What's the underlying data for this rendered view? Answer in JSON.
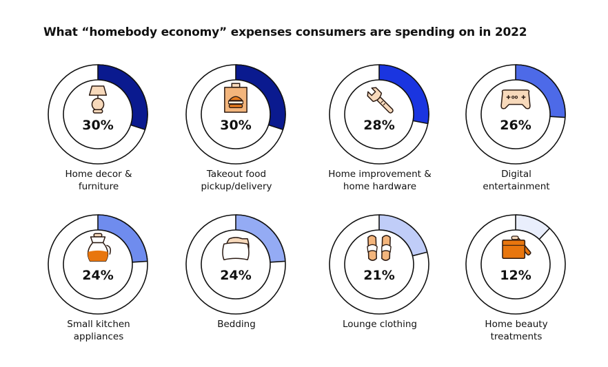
{
  "chart_data": {
    "type": "donut",
    "title": "What “homebody economy” expenses consumers are spending on in 2022",
    "items": [
      {
        "label_lines": [
          "Home decor &",
          "furniture"
        ],
        "value": 30,
        "value_label": "30%",
        "color": "#0a1a8f",
        "icon": "lamp-icon"
      },
      {
        "label_lines": [
          "Takeout food",
          "pickup/delivery"
        ],
        "value": 30,
        "value_label": "30%",
        "color": "#0a1a8f",
        "icon": "takeout-bag-icon"
      },
      {
        "label_lines": [
          "Home improvement &",
          "home hardware"
        ],
        "value": 28,
        "value_label": "28%",
        "color": "#1a35e0",
        "icon": "wrench-icon"
      },
      {
        "label_lines": [
          "Digital",
          "entertainment"
        ],
        "value": 26,
        "value_label": "26%",
        "color": "#4d6ae8",
        "icon": "gamepad-icon"
      },
      {
        "label_lines": [
          "Small kitchen",
          "appliances"
        ],
        "value": 24,
        "value_label": "24%",
        "color": "#6f8cee",
        "icon": "coffee-pot-icon"
      },
      {
        "label_lines": [
          "Bedding"
        ],
        "value": 24,
        "value_label": "24%",
        "color": "#94abf4",
        "icon": "pillow-icon"
      },
      {
        "label_lines": [
          "Lounge clothing"
        ],
        "value": 21,
        "value_label": "21%",
        "color": "#c0cdf8",
        "icon": "slippers-icon"
      },
      {
        "label_lines": [
          "Home beauty",
          "treatments"
        ],
        "value": 12,
        "value_label": "12%",
        "color": "#e9eefc",
        "icon": "beauty-kit-icon"
      }
    ]
  }
}
